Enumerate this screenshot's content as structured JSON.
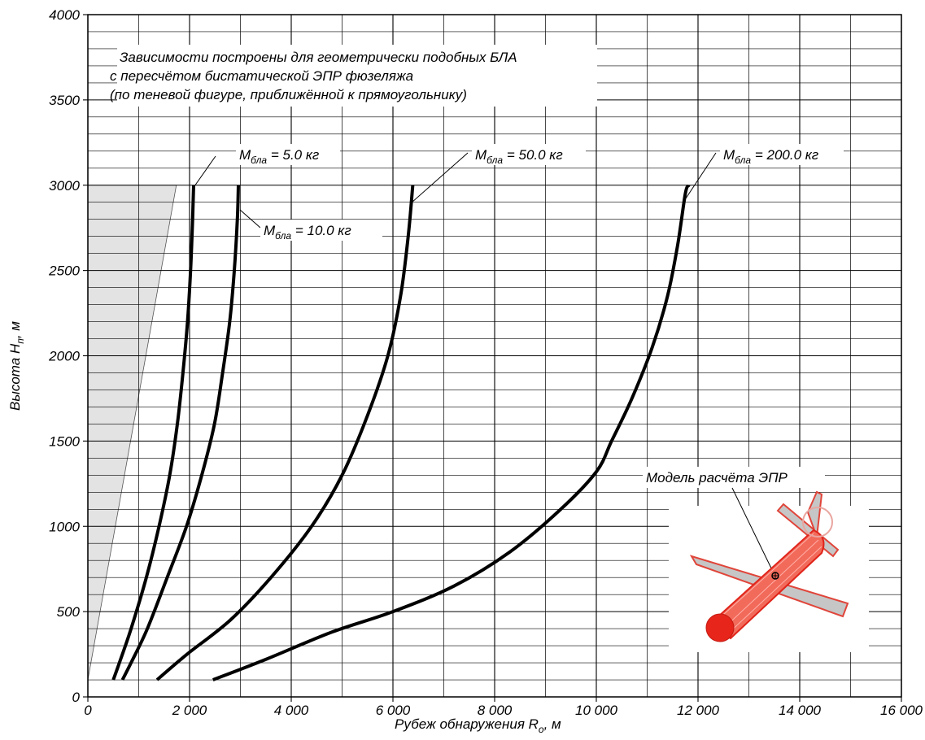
{
  "chart_data": {
    "type": "line",
    "xlabel": {
      "main": "Рубеж обнаружения R",
      "sub": "о",
      "unit": ", м"
    },
    "ylabel": {
      "main": "Высота H",
      "sub": "п",
      "unit": ", м"
    },
    "xlim": [
      0,
      16000
    ],
    "ylim": [
      0,
      4000
    ],
    "grid": true,
    "x_tick_labels": [
      "0",
      "2 000",
      "4 000",
      "6 000",
      "8 000",
      "10 000",
      "12 000",
      "14 000",
      "16 000"
    ],
    "y_tick_labels": [
      "0",
      "500",
      "1000",
      "1500",
      "2000",
      "2500",
      "3000",
      "3500",
      "4000"
    ],
    "x_major": [
      0,
      2000,
      4000,
      6000,
      8000,
      10000,
      12000,
      14000,
      16000
    ],
    "y_major": [
      0,
      500,
      1000,
      1500,
      2000,
      2500,
      3000,
      3500,
      4000
    ],
    "note": [
      "Зависимости построены для геометрически подобных БЛА",
      "с пересчётом бистатической ЭПР фюзеляжа",
      "(по теневой фигуре, приближённой к прямоугольнику)"
    ],
    "shaded_region": [
      [
        0,
        100
      ],
      [
        1740,
        3000
      ],
      [
        0,
        3000
      ]
    ],
    "series": [
      {
        "label_main": "M",
        "label_sub": "бла",
        "label_rest": " = 5.0 кг",
        "points": [
          [
            500,
            100
          ],
          [
            620,
            200
          ],
          [
            850,
            400
          ],
          [
            1150,
            700
          ],
          [
            1400,
            1000
          ],
          [
            1610,
            1300
          ],
          [
            1760,
            1600
          ],
          [
            1870,
            1900
          ],
          [
            1960,
            2200
          ],
          [
            2020,
            2500
          ],
          [
            2060,
            2800
          ],
          [
            2080,
            3000
          ]
        ]
      },
      {
        "label_main": "M",
        "label_sub": "бла",
        "label_rest": " = 10.0 кг",
        "points": [
          [
            680,
            100
          ],
          [
            850,
            200
          ],
          [
            1170,
            400
          ],
          [
            1560,
            700
          ],
          [
            1940,
            1000
          ],
          [
            2240,
            1300
          ],
          [
            2490,
            1600
          ],
          [
            2650,
            1900
          ],
          [
            2790,
            2200
          ],
          [
            2880,
            2500
          ],
          [
            2940,
            2800
          ],
          [
            2960,
            3000
          ]
        ]
      },
      {
        "label_main": "M",
        "label_sub": "бла",
        "label_rest": " = 50.0 кг",
        "points": [
          [
            1360,
            100
          ],
          [
            1950,
            250
          ],
          [
            2800,
            450
          ],
          [
            3600,
            700
          ],
          [
            4400,
            1000
          ],
          [
            5000,
            1300
          ],
          [
            5500,
            1650
          ],
          [
            5900,
            2000
          ],
          [
            6150,
            2350
          ],
          [
            6300,
            2700
          ],
          [
            6390,
            3000
          ]
        ]
      },
      {
        "label_main": "M",
        "label_sub": "бла",
        "label_rest": " = 200.0 кг",
        "points": [
          [
            2460,
            100
          ],
          [
            3500,
            220
          ],
          [
            4800,
            380
          ],
          [
            6000,
            500
          ],
          [
            7200,
            650
          ],
          [
            8300,
            850
          ],
          [
            9300,
            1100
          ],
          [
            10000,
            1320
          ],
          [
            10300,
            1500
          ],
          [
            10700,
            1750
          ],
          [
            11100,
            2050
          ],
          [
            11400,
            2350
          ],
          [
            11600,
            2650
          ],
          [
            11750,
            2950
          ],
          [
            11820,
            3000
          ]
        ]
      }
    ],
    "inset_caption": "Модель расчёта ЭПР"
  }
}
